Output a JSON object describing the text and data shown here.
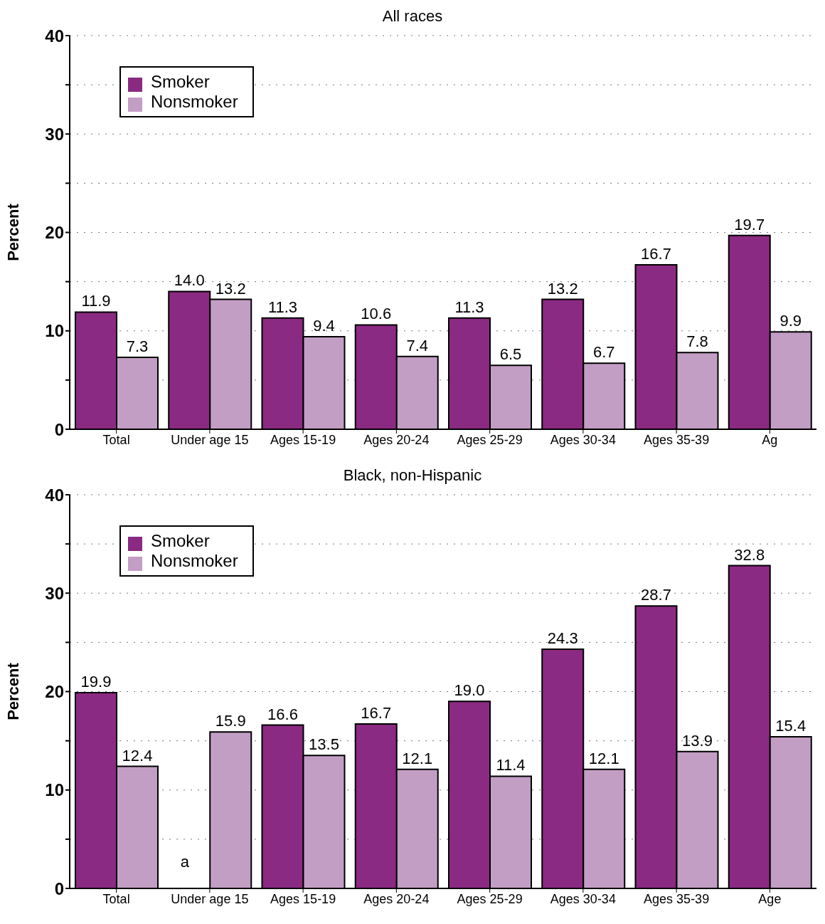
{
  "chart_data": [
    {
      "type": "bar",
      "title": "All races",
      "ylabel": "Percent",
      "categories": [
        "Total",
        "Under age 15",
        "Ages 15-19",
        "Ages 20-24",
        "Ages 25-29",
        "Ages 30-34",
        "Ages 35-39",
        "Ag"
      ],
      "series": [
        {
          "name": "Smoker",
          "color": "#8b2a82",
          "values": [
            11.9,
            14.0,
            11.3,
            10.6,
            11.3,
            13.2,
            16.7,
            19.7
          ],
          "value_labels": [
            "11.9",
            "14.0",
            "11.3",
            "10.6",
            "11.3",
            "13.2",
            "16.7",
            "19.7"
          ]
        },
        {
          "name": "Nonsmoker",
          "color": "#c39ec4",
          "values": [
            7.3,
            13.2,
            9.4,
            7.4,
            6.5,
            6.7,
            7.8,
            9.9
          ],
          "value_labels": [
            "7.3",
            "13.2",
            "9.4",
            "7.4",
            "6.5",
            "6.7",
            "7.8",
            "9.9"
          ]
        }
      ],
      "ylim": [
        0,
        40
      ],
      "yticks": [
        0,
        {
          "value": 5,
          "label": null
        },
        10,
        {
          "value": 15,
          "label": null
        },
        20,
        {
          "value": 25,
          "label": null
        },
        30,
        {
          "value": 35,
          "label": null
        },
        40
      ],
      "grid": "y",
      "legend": "top left"
    },
    {
      "type": "bar",
      "title": "Black, non-Hispanic",
      "ylabel": "Percent",
      "categories": [
        "Total",
        "Under age 15",
        "Ages 15-19",
        "Ages 20-24",
        "Ages 25-29",
        "Ages 30-34",
        "Ages 35-39",
        "Age"
      ],
      "series": [
        {
          "name": "Smoker",
          "color": "#8b2a82",
          "values": [
            19.9,
            null,
            16.6,
            16.7,
            19.0,
            24.3,
            28.7,
            32.8
          ],
          "value_labels": [
            "19.9",
            null,
            "16.6",
            "16.7",
            "19.0",
            "24.3",
            "28.7",
            "32.8"
          ]
        },
        {
          "name": "Nonsmoker",
          "color": "#c39ec4",
          "values": [
            12.4,
            15.9,
            13.5,
            12.1,
            11.4,
            12.1,
            13.9,
            15.4
          ],
          "value_labels": [
            "12.4",
            "15.9",
            "13.5",
            "12.1",
            "11.4",
            "12.1",
            "13.9",
            "15.4"
          ]
        }
      ],
      "ylim": [
        0,
        40
      ],
      "yticks": [
        0,
        {
          "value": 5,
          "label": null
        },
        10,
        {
          "value": 15,
          "label": null
        },
        20,
        {
          "value": 25,
          "label": null
        },
        30,
        {
          "value": 35,
          "label": null
        },
        40
      ],
      "grid": "y",
      "legend": "top left",
      "annotations": [
        {
          "text": "a",
          "x": "Under age 15",
          "y": 0
        }
      ]
    }
  ]
}
